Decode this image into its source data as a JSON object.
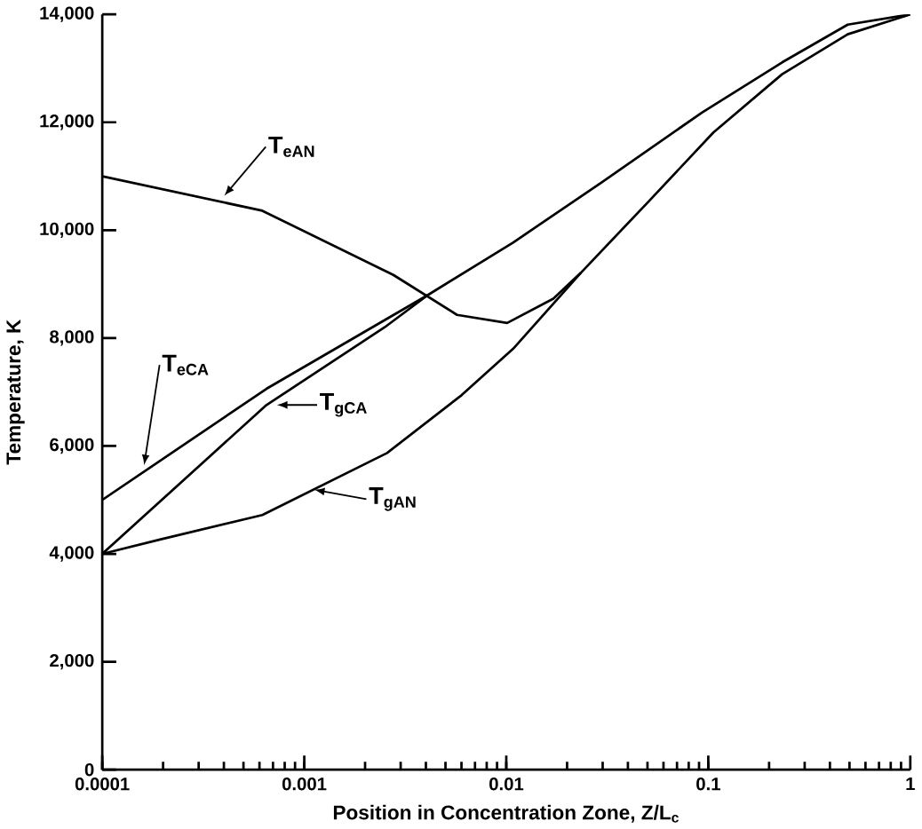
{
  "chart_data": {
    "type": "line",
    "xlabel": "Position in Concentration Zone, Z/L$_{c}$",
    "ylabel": "Temperature, K",
    "log": "x",
    "xlim": [
      0.0001,
      1
    ],
    "ylim": [
      0,
      14000
    ],
    "xticks": [
      {
        "value": 0.0001,
        "label": "0.0001"
      },
      {
        "value": 0.001,
        "label": "0.001"
      },
      {
        "value": 0.01,
        "label": "0.01"
      },
      {
        "value": 0.1,
        "label": "0.1"
      },
      {
        "value": 1,
        "label": "1"
      }
    ],
    "yticks": [
      0,
      {
        "value": 2000,
        "label": "2,000"
      },
      {
        "value": 4000,
        "label": "4,000"
      },
      {
        "value": 6000,
        "label": "6,000"
      },
      {
        "value": 8000,
        "label": "8,000"
      },
      {
        "value": 10000,
        "label": "10,000"
      },
      {
        "value": 12000,
        "label": "12,000"
      },
      {
        "value": 14000,
        "label": "14,000"
      }
    ],
    "grid": false,
    "series": [
      {
        "color": "#000000",
        "x": [
          0.0001,
          0.00062,
          0.00276,
          0.0057,
          0.0101,
          0.0171,
          0.0234
        ],
        "values": [
          11000,
          10360,
          9170,
          8430,
          8280,
          8730,
          9210
        ]
      },
      {
        "color": "#000000",
        "x": [
          0.0001,
          0.00065,
          0.0041,
          0.0108,
          0.0295,
          0.093,
          0.232,
          0.49,
          1
        ],
        "values": [
          5000,
          7060,
          8800,
          9770,
          10880,
          12180,
          13110,
          13810,
          14000
        ]
      },
      {
        "color": "#000000",
        "x": [
          0.0001,
          0.00065,
          0.0025,
          0.0041
        ],
        "values": [
          4000,
          6760,
          8200,
          8800
        ]
      },
      {
        "color": "#000000",
        "x": [
          0.0001,
          0.000195,
          0.00062,
          0.00257,
          0.006,
          0.0108,
          0.0234,
          0.05,
          0.106,
          0.232,
          0.49,
          1
        ],
        "values": [
          4000,
          4270,
          4720,
          5870,
          6940,
          7800,
          9210,
          10510,
          11810,
          12890,
          13630,
          14000
        ]
      }
    ],
    "annotations": [
      {
        "text": "T$_{eAN}$",
        "x": 0.00039,
        "y": 10580
      },
      {
        "text": "T$_{eCA}$",
        "x": 0.00016,
        "y": 5570
      },
      {
        "text": "T$_{gCA}$",
        "x": 0.0007,
        "y": 6760
      },
      {
        "text": "T$_{gAN}$",
        "x": 0.00107,
        "y": 5200
      }
    ]
  }
}
